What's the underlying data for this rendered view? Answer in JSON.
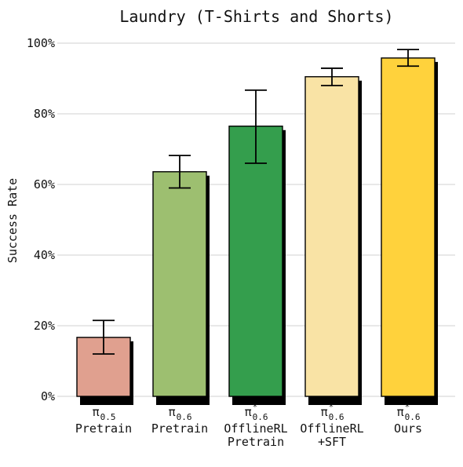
{
  "chart_data": {
    "type": "bar",
    "title": "Laundry (T-Shirts and Shorts)",
    "ylabel": "Success Rate",
    "xlabel": "",
    "ylim": [
      0,
      100
    ],
    "yticks": [
      0,
      20,
      40,
      60,
      80,
      100
    ],
    "ytick_labels": [
      "0%",
      "20%",
      "40%",
      "60%",
      "80%",
      "100%"
    ],
    "grid": true,
    "categories": [
      {
        "symbol": "π",
        "sub": "0.5",
        "sup": "",
        "lines": [
          "Pretrain"
        ]
      },
      {
        "symbol": "π",
        "sub": "0.6",
        "sup": "",
        "lines": [
          "Pretrain"
        ]
      },
      {
        "symbol": "π",
        "sub": "0.6",
        "sup": "*",
        "lines": [
          "OfflineRL",
          "Pretrain"
        ]
      },
      {
        "symbol": "π",
        "sub": "0.6",
        "sup": "*",
        "lines": [
          "OfflineRL",
          "+SFT"
        ]
      },
      {
        "symbol": "π",
        "sub": "0.6",
        "sup": "*",
        "lines": [
          "Ours"
        ]
      }
    ],
    "values": [
      16.7,
      63.6,
      76.5,
      90.5,
      95.8
    ],
    "error_low": [
      12.0,
      59.0,
      66.0,
      88.0,
      93.5
    ],
    "error_high": [
      21.5,
      68.2,
      86.7,
      92.9,
      98.2
    ],
    "colors": [
      "#e0a08f",
      "#9dbf70",
      "#349e4d",
      "#f9e3a5",
      "#ffd23c"
    ]
  }
}
